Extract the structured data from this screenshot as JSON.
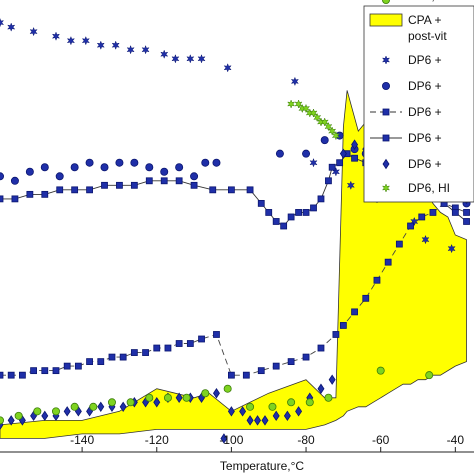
{
  "chart_data": {
    "type": "scatter",
    "xlabel": "Temperature,°C",
    "xlim": [
      -162,
      -35
    ],
    "ylim": [
      0,
      100
    ],
    "xticks": [
      -140,
      -120,
      -100,
      -80,
      -60,
      -40
    ],
    "xtick_labels": [
      "-140",
      "-120",
      "-100",
      "-80",
      "-60",
      "-40"
    ],
    "grid": false,
    "legend_position": "top-right",
    "colors": {
      "marker": "#1f2fa8",
      "marker_edge": "#0b1670",
      "green": "#7fd320",
      "green_edge": "#3c7d0a",
      "band": "#ffff00",
      "band_edge": "#333333"
    },
    "band": {
      "name": "CPA + post-vit",
      "x": [
        -162,
        -150,
        -140,
        -130,
        -120,
        -110,
        -106,
        -100,
        -90,
        -80,
        -75,
        -72,
        -70,
        -69,
        -66,
        -64,
        -62,
        -60,
        -58,
        -56,
        -54,
        -52,
        -50,
        -48,
        -46,
        -44,
        -42,
        -40,
        -37
      ],
      "upper": [
        6,
        7,
        7,
        9,
        14,
        12,
        13,
        9,
        13,
        16,
        12,
        12,
        72,
        80,
        71,
        73,
        70,
        73,
        70,
        68,
        67,
        64,
        61,
        58,
        55,
        53,
        52,
        48,
        47
      ],
      "lower": [
        3,
        3,
        4,
        4,
        5,
        5,
        5,
        5,
        5,
        5,
        6,
        7,
        8,
        9,
        10,
        10,
        11,
        12,
        13,
        14,
        15,
        15,
        16,
        16,
        17,
        17,
        18,
        19,
        20
      ]
    },
    "series": [
      {
        "name": "DP6 +",
        "marker": "star",
        "line": "none",
        "x": [
          -162,
          -159,
          -153,
          -147,
          -143,
          -139,
          -135,
          -131,
          -127,
          -123,
          -118,
          -115,
          -111,
          -108,
          -101,
          -83,
          -78,
          -72,
          -68,
          -61,
          -51,
          -48,
          -41
        ],
        "y": [
          95,
          94,
          93,
          92,
          91,
          91,
          90,
          90,
          89,
          89,
          88,
          87,
          87,
          87,
          85,
          82,
          64,
          62,
          59,
          56,
          51,
          47,
          45
        ]
      },
      {
        "name": "DP6 +",
        "marker": "circle",
        "line": "none",
        "x": [
          -162,
          -158,
          -154,
          -150,
          -146,
          -142,
          -138,
          -134,
          -130,
          -126,
          -122,
          -118,
          -114,
          -110,
          -107,
          -104,
          -87,
          -80,
          -75,
          -71,
          -67,
          -64,
          -61,
          -58,
          -55,
          -52,
          -49,
          -46,
          -43,
          -40,
          -37
        ],
        "y": [
          61,
          60,
          62,
          63,
          61,
          63,
          64,
          63,
          64,
          64,
          63,
          62,
          63,
          61,
          64,
          64,
          66,
          66,
          69,
          70,
          67,
          66,
          65,
          64,
          63,
          62,
          62,
          61,
          60,
          59,
          55
        ]
      },
      {
        "name": "DP6 +",
        "marker": "square",
        "line": "dashed",
        "x": [
          -162,
          -159,
          -156,
          -153,
          -150,
          -147,
          -144,
          -141,
          -138,
          -135,
          -132,
          -129,
          -126,
          -123,
          -120,
          -117,
          -114,
          -111,
          -108,
          -104,
          -100,
          -96,
          -92,
          -88,
          -84,
          -80,
          -76,
          -72,
          -70,
          -67,
          -64,
          -61,
          -58,
          -55,
          -52,
          -49,
          -46,
          -43,
          -40,
          -37
        ],
        "y": [
          17,
          17,
          17,
          18,
          18,
          18,
          19,
          19,
          20,
          20,
          21,
          21,
          22,
          22,
          23,
          23,
          24,
          24,
          25,
          26,
          17,
          17,
          18,
          19,
          20,
          21,
          23,
          26,
          28,
          31,
          34,
          38,
          42,
          46,
          50,
          52,
          53,
          55,
          54,
          53
        ]
      },
      {
        "name": "DP6 +",
        "marker": "square",
        "line": "solid",
        "x": [
          -162,
          -158,
          -154,
          -150,
          -146,
          -142,
          -138,
          -134,
          -130,
          -126,
          -122,
          -118,
          -114,
          -110,
          -105,
          -100,
          -95,
          -92,
          -90,
          -88,
          -86,
          -84,
          -82,
          -80,
          -78,
          -76,
          -74,
          -73,
          -71,
          -69,
          -67,
          -64,
          -61,
          -58,
          -55,
          -52,
          -49,
          -46,
          -43,
          -40,
          -37
        ],
        "y": [
          56,
          56,
          57,
          57,
          58,
          58,
          58,
          59,
          59,
          59,
          60,
          60,
          60,
          59,
          58,
          58,
          58,
          55,
          53,
          51,
          50,
          52,
          53,
          53,
          54,
          56,
          60,
          63,
          64,
          66,
          65,
          64,
          62,
          61,
          60,
          59,
          58,
          57,
          55,
          53,
          51
        ]
      },
      {
        "name": "DP6 +",
        "marker": "diamond",
        "line": "none",
        "x": [
          -162,
          -159,
          -156,
          -153,
          -150,
          -147,
          -144,
          -141,
          -138,
          -135,
          -132,
          -129,
          -126,
          -123,
          -120,
          -117,
          -114,
          -111,
          -108,
          -104,
          -102,
          -100,
          -97,
          -95,
          -93,
          -91,
          -88,
          -85,
          -82,
          -79,
          -76,
          -73,
          -70,
          -67,
          -64,
          -61,
          -58,
          -55,
          -52,
          -49,
          -46,
          -43,
          -40,
          -37
        ],
        "y": [
          6,
          7,
          7,
          8,
          8,
          8,
          9,
          9,
          9,
          10,
          10,
          10,
          11,
          11,
          11,
          12,
          12,
          12,
          12,
          13,
          3,
          9,
          9,
          7,
          7,
          7,
          8,
          8,
          9,
          12,
          14,
          16,
          66,
          68,
          67,
          65,
          63,
          62,
          61,
          60,
          59,
          58,
          57,
          56
        ]
      },
      {
        "name": "DP6, HI",
        "marker": "star",
        "line": "none",
        "color": "green",
        "x": [
          -84,
          -82,
          -81,
          -80,
          -79,
          -78,
          -77,
          -76,
          -75,
          -74,
          -73,
          -72
        ],
        "y": [
          77,
          77,
          76,
          76,
          75,
          75,
          74,
          73,
          73,
          72,
          71,
          70
        ]
      },
      {
        "name": "DP6, HI",
        "marker": "circle",
        "line": "none",
        "color": "green",
        "x": [
          -162,
          -157,
          -152,
          -147,
          -142,
          -137,
          -132,
          -127,
          -122,
          -117,
          -112,
          -107,
          -101,
          -95,
          -89,
          -84,
          -79,
          -74,
          -60,
          -47
        ],
        "y": [
          7,
          8,
          9,
          9,
          10,
          10,
          11,
          11,
          12,
          12,
          12,
          13,
          14,
          10,
          10,
          11,
          11,
          12,
          18,
          17
        ]
      }
    ]
  }
}
